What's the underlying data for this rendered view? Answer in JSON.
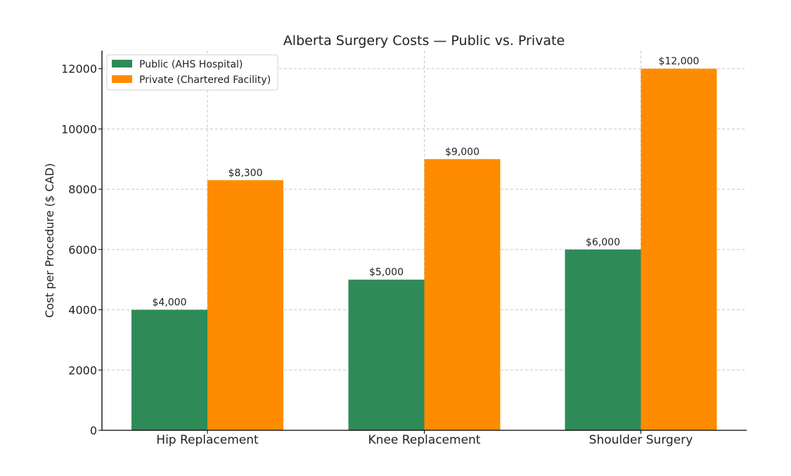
{
  "chart_data": {
    "type": "bar",
    "title": "Alberta Surgery Costs — Public vs. Private",
    "xlabel": "",
    "ylabel": "Cost per Procedure ($ CAD)",
    "categories": [
      "Hip Replacement",
      "Knee Replacement",
      "Shoulder Surgery"
    ],
    "series": [
      {
        "name": "Public (AHS Hospital)",
        "color": "#2e8b57",
        "values": [
          4000,
          5000,
          6000
        ],
        "labels": [
          "$4,000",
          "$5,000",
          "$6,000"
        ]
      },
      {
        "name": "Private (Chartered Facility)",
        "color": "#ff8c00",
        "values": [
          8300,
          9000,
          12000
        ],
        "labels": [
          "$8,300",
          "$9,000",
          "$12,000"
        ]
      }
    ],
    "ylim": [
      0,
      12600
    ],
    "yticks": [
      0,
      2000,
      4000,
      6000,
      8000,
      10000,
      12000
    ],
    "ytick_labels": [
      "0",
      "2000",
      "4000",
      "6000",
      "8000",
      "10000",
      "12000"
    ],
    "grid": true,
    "legend_position": "top-left"
  }
}
